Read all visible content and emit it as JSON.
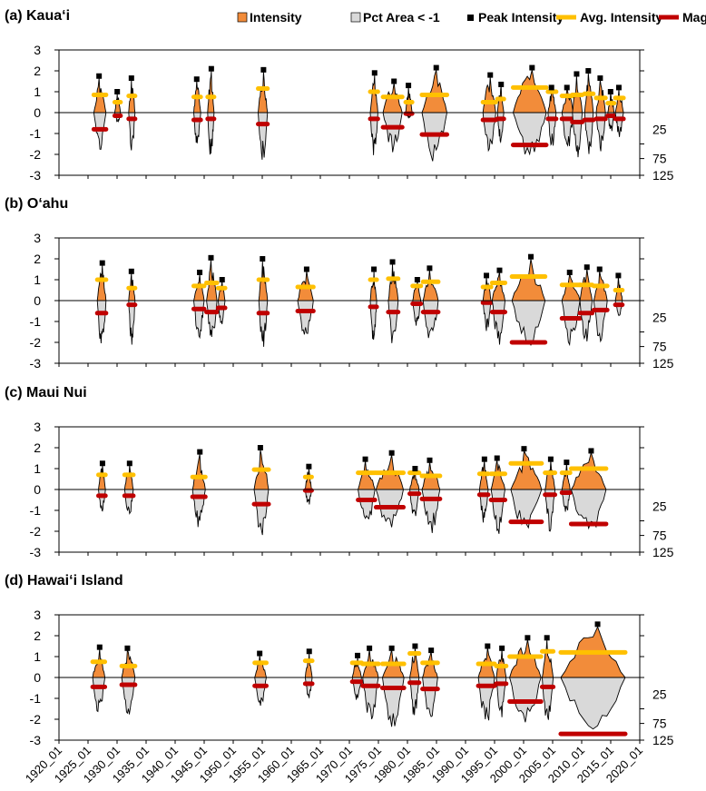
{
  "legend": [
    {
      "label": "Intensity",
      "kind": "swatch",
      "color": "#f28c3a"
    },
    {
      "label": "Pct Area < -1",
      "kind": "swatch",
      "color": "#d9d9d9"
    },
    {
      "label": "Peak Intensity",
      "kind": "square",
      "color": "#000000"
    },
    {
      "label": "Avg. Intensity",
      "kind": "line",
      "color": "#ffc000"
    },
    {
      "label": "Magnitude",
      "kind": "line",
      "color": "#c00000"
    }
  ],
  "colors": {
    "intensity": "#f28c3a",
    "area": "#d9d9d9",
    "peak": "#000000",
    "avg": "#ffc000",
    "magnitude": "#c00000"
  },
  "chart_data": [
    {
      "type": "area",
      "title": "(a) Kaua‘i",
      "ylim": [
        -3,
        3
      ],
      "yticks": [
        3,
        2,
        1,
        0,
        -1,
        -2,
        -3
      ],
      "y2ticks": [
        "25",
        "75",
        "125"
      ],
      "xlim": [
        1920,
        2020
      ],
      "xticks": [
        "1920_01",
        "1925_01",
        "1930_01",
        "1935_01",
        "1940_01",
        "1945_01",
        "1950_01",
        "1955_01",
        "1960_01",
        "1965_01",
        "1970_01",
        "1975_01",
        "1980_01",
        "1985_01",
        "1990_01",
        "1995_01",
        "2000_01",
        "2005_01",
        "2010_01",
        "2015_01",
        "2020_01"
      ],
      "events": [
        {
          "start": 1926.0,
          "end": 1928.1,
          "peak": 1.75,
          "avg": 0.85,
          "mag": -0.8,
          "minArea": -2.0
        },
        {
          "start": 1929.6,
          "end": 1930.6,
          "peak": 1.0,
          "avg": 0.5,
          "mag": -0.15,
          "minArea": -0.5
        },
        {
          "start": 1932.0,
          "end": 1933.1,
          "peak": 1.65,
          "avg": 0.8,
          "mag": -0.3,
          "minArea": -2.0
        },
        {
          "start": 1943.2,
          "end": 1944.4,
          "peak": 1.6,
          "avg": 0.75,
          "mag": -0.35,
          "minArea": -1.7
        },
        {
          "start": 1945.6,
          "end": 1946.7,
          "peak": 2.1,
          "avg": 0.75,
          "mag": -0.3,
          "minArea": -2.3
        },
        {
          "start": 1954.3,
          "end": 1955.9,
          "peak": 2.05,
          "avg": 1.15,
          "mag": -0.55,
          "minArea": -2.4
        },
        {
          "start": 1973.6,
          "end": 1974.9,
          "peak": 1.9,
          "avg": 1.0,
          "mag": -0.3,
          "minArea": -2.2
        },
        {
          "start": 1975.8,
          "end": 1979.1,
          "peak": 1.5,
          "avg": 0.75,
          "mag": -0.7,
          "minArea": -2.0
        },
        {
          "start": 1979.7,
          "end": 1980.8,
          "peak": 1.3,
          "avg": 0.5,
          "mag": -0.05,
          "minArea": -0.3
        },
        {
          "start": 1982.5,
          "end": 1986.8,
          "peak": 2.15,
          "avg": 0.85,
          "mag": -1.05,
          "minArea": -2.4
        },
        {
          "start": 1993.0,
          "end": 1995.2,
          "peak": 1.8,
          "avg": 0.5,
          "mag": -0.35,
          "minArea": -2.3
        },
        {
          "start": 1995.5,
          "end": 1996.6,
          "peak": 1.35,
          "avg": 0.65,
          "mag": -0.3,
          "minArea": -1.5
        },
        {
          "start": 1998.2,
          "end": 2003.9,
          "peak": 2.15,
          "avg": 1.2,
          "mag": -1.55,
          "minArea": -2.4
        },
        {
          "start": 2004.2,
          "end": 2005.6,
          "peak": 1.2,
          "avg": 1.0,
          "mag": -0.3,
          "minArea": -1.8
        },
        {
          "start": 2006.6,
          "end": 2008.6,
          "peak": 1.2,
          "avg": 0.8,
          "mag": -0.3,
          "minArea": -1.8
        },
        {
          "start": 2008.4,
          "end": 2010.1,
          "peak": 1.85,
          "avg": 0.85,
          "mag": -0.45,
          "minArea": -2.3
        },
        {
          "start": 2010.5,
          "end": 2012.0,
          "peak": 2.0,
          "avg": 0.9,
          "mag": -0.35,
          "minArea": -2.3
        },
        {
          "start": 2012.5,
          "end": 2014.1,
          "peak": 1.65,
          "avg": 0.7,
          "mag": -0.3,
          "minArea": -2.0
        },
        {
          "start": 2014.5,
          "end": 2015.6,
          "peak": 1.0,
          "avg": 0.45,
          "mag": -0.15,
          "minArea": -1.0
        },
        {
          "start": 2015.8,
          "end": 2017.2,
          "peak": 1.2,
          "avg": 0.7,
          "mag": -0.3,
          "minArea": -1.2
        }
      ]
    },
    {
      "type": "area",
      "title": "(b) O‘ahu",
      "ylim": [
        -3,
        3
      ],
      "yticks": [
        3,
        2,
        1,
        0,
        -1,
        -2,
        -3
      ],
      "y2ticks": [
        "25",
        "75",
        "125"
      ],
      "xlim": [
        1920,
        2020
      ],
      "xticks": [
        "1920_01",
        "1925_01",
        "1930_01",
        "1935_01",
        "1940_01",
        "1945_01",
        "1950_01",
        "1955_01",
        "1960_01",
        "1965_01",
        "1970_01",
        "1975_01",
        "1980_01",
        "1985_01",
        "1990_01",
        "1995_01",
        "2000_01",
        "2005_01",
        "2010_01",
        "2015_01",
        "2020_01"
      ],
      "events": [
        {
          "start": 1926.6,
          "end": 1928.1,
          "peak": 1.8,
          "avg": 1.0,
          "mag": -0.6,
          "minArea": -2.4
        },
        {
          "start": 1932.0,
          "end": 1933.1,
          "peak": 1.4,
          "avg": 0.6,
          "mag": -0.2,
          "minArea": -2.2
        },
        {
          "start": 1943.2,
          "end": 1945.0,
          "peak": 1.35,
          "avg": 0.7,
          "mag": -0.4,
          "minArea": -1.9
        },
        {
          "start": 1945.4,
          "end": 1947.2,
          "peak": 2.05,
          "avg": 0.85,
          "mag": -0.55,
          "minArea": -2.1
        },
        {
          "start": 1947.4,
          "end": 1948.6,
          "peak": 1.0,
          "avg": 0.6,
          "mag": -0.35,
          "minArea": -1.3
        },
        {
          "start": 1954.4,
          "end": 1955.9,
          "peak": 2.0,
          "avg": 1.0,
          "mag": -0.6,
          "minArea": -2.4
        },
        {
          "start": 1961.1,
          "end": 1963.8,
          "peak": 1.5,
          "avg": 0.65,
          "mag": -0.5,
          "minArea": -2.1
        },
        {
          "start": 1973.6,
          "end": 1974.7,
          "peak": 1.5,
          "avg": 1.0,
          "mag": -0.3,
          "minArea": -2.4
        },
        {
          "start": 1976.7,
          "end": 1978.4,
          "peak": 1.85,
          "avg": 1.05,
          "mag": -0.55,
          "minArea": -2.3
        },
        {
          "start": 1980.9,
          "end": 1982.3,
          "peak": 1.0,
          "avg": 0.7,
          "mag": -0.15,
          "minArea": -1.3
        },
        {
          "start": 1982.7,
          "end": 1985.3,
          "peak": 1.55,
          "avg": 0.9,
          "mag": -0.55,
          "minArea": -2.4
        },
        {
          "start": 1993.0,
          "end": 1994.4,
          "peak": 1.2,
          "avg": 0.65,
          "mag": -0.1,
          "minArea": -1.5
        },
        {
          "start": 1994.6,
          "end": 1996.8,
          "peak": 1.45,
          "avg": 0.85,
          "mag": -0.55,
          "minArea": -2.2
        },
        {
          "start": 1998.0,
          "end": 2003.7,
          "peak": 2.1,
          "avg": 1.15,
          "mag": -2.0,
          "minArea": -2.4
        },
        {
          "start": 2006.6,
          "end": 2009.7,
          "peak": 1.35,
          "avg": 0.75,
          "mag": -0.85,
          "minArea": -2.3
        },
        {
          "start": 2009.7,
          "end": 2011.8,
          "peak": 1.6,
          "avg": 0.75,
          "mag": -0.6,
          "minArea": -2.1
        },
        {
          "start": 2012.1,
          "end": 2014.4,
          "peak": 1.5,
          "avg": 0.7,
          "mag": -0.45,
          "minArea": -2.2
        },
        {
          "start": 2015.8,
          "end": 2017.0,
          "peak": 1.2,
          "avg": 0.5,
          "mag": -0.2,
          "minArea": -0.9
        }
      ]
    },
    {
      "type": "area",
      "title": "(c) Maui Nui",
      "ylim": [
        -3,
        3
      ],
      "yticks": [
        3,
        2,
        1,
        0,
        -1,
        -2,
        -3
      ],
      "y2ticks": [
        "25",
        "75",
        "125"
      ],
      "xlim": [
        1920,
        2020
      ],
      "xticks": [
        "1920_01",
        "1925_01",
        "1930_01",
        "1935_01",
        "1940_01",
        "1945_01",
        "1950_01",
        "1955_01",
        "1960_01",
        "1965_01",
        "1970_01",
        "1975_01",
        "1980_01",
        "1985_01",
        "1990_01",
        "1995_01",
        "2000_01",
        "2005_01",
        "2010_01",
        "2015_01",
        "2020_01"
      ],
      "events": [
        {
          "start": 1926.8,
          "end": 1928.0,
          "peak": 1.25,
          "avg": 0.7,
          "mag": -0.3,
          "minArea": -1.2
        },
        {
          "start": 1931.3,
          "end": 1932.8,
          "peak": 1.25,
          "avg": 0.7,
          "mag": -0.3,
          "minArea": -1.4
        },
        {
          "start": 1943.0,
          "end": 1945.2,
          "peak": 1.8,
          "avg": 0.6,
          "mag": -0.35,
          "minArea": -1.9
        },
        {
          "start": 1953.6,
          "end": 1956.1,
          "peak": 2.0,
          "avg": 0.95,
          "mag": -0.7,
          "minArea": -2.4
        },
        {
          "start": 1962.4,
          "end": 1963.5,
          "peak": 1.1,
          "avg": 0.6,
          "mag": -0.05,
          "minArea": -0.8
        },
        {
          "start": 1971.5,
          "end": 1974.4,
          "peak": 1.45,
          "avg": 0.8,
          "mag": -0.5,
          "minArea": -2.0
        },
        {
          "start": 1974.6,
          "end": 1979.3,
          "peak": 1.75,
          "avg": 0.8,
          "mag": -0.85,
          "minArea": -2.2
        },
        {
          "start": 1980.4,
          "end": 1982.0,
          "peak": 1.0,
          "avg": 0.8,
          "mag": -0.2,
          "minArea": -1.6
        },
        {
          "start": 1982.5,
          "end": 1985.6,
          "peak": 1.4,
          "avg": 0.65,
          "mag": -0.45,
          "minArea": -2.2
        },
        {
          "start": 1992.4,
          "end": 1993.9,
          "peak": 1.45,
          "avg": 0.75,
          "mag": -0.25,
          "minArea": -1.8
        },
        {
          "start": 1994.4,
          "end": 1996.8,
          "peak": 1.5,
          "avg": 0.75,
          "mag": -0.5,
          "minArea": -2.2
        },
        {
          "start": 1997.8,
          "end": 2003.1,
          "peak": 1.95,
          "avg": 1.25,
          "mag": -1.55,
          "minArea": -2.3
        },
        {
          "start": 2003.7,
          "end": 2005.4,
          "peak": 1.45,
          "avg": 0.8,
          "mag": -0.25,
          "minArea": -2.1
        },
        {
          "start": 2006.6,
          "end": 2008.0,
          "peak": 1.3,
          "avg": 0.8,
          "mag": -0.15,
          "minArea": -1.3
        },
        {
          "start": 2008.2,
          "end": 2014.2,
          "peak": 1.85,
          "avg": 1.0,
          "mag": -1.65,
          "minArea": -2.4
        }
      ]
    },
    {
      "type": "area",
      "title": "(d) Hawai‘i Island",
      "ylim": [
        -3,
        3
      ],
      "yticks": [
        3,
        2,
        1,
        0,
        -1,
        -2,
        -3
      ],
      "y2ticks": [
        "25",
        "75",
        "125"
      ],
      "xlim": [
        1920,
        2020
      ],
      "xticks": [
        "1920_01",
        "1925_01",
        "1930_01",
        "1935_01",
        "1940_01",
        "1945_01",
        "1950_01",
        "1955_01",
        "1960_01",
        "1965_01",
        "1970_01",
        "1975_01",
        "1980_01",
        "1985_01",
        "1990_01",
        "1995_01",
        "2000_01",
        "2005_01",
        "2010_01",
        "2015_01",
        "2020_01"
      ],
      "events": [
        {
          "start": 1925.8,
          "end": 1927.9,
          "peak": 1.45,
          "avg": 0.75,
          "mag": -0.45,
          "minArea": -1.9
        },
        {
          "start": 1930.8,
          "end": 1933.1,
          "peak": 1.4,
          "avg": 0.55,
          "mag": -0.35,
          "minArea": -1.9
        },
        {
          "start": 1953.7,
          "end": 1955.7,
          "peak": 1.15,
          "avg": 0.7,
          "mag": -0.4,
          "minArea": -1.5
        },
        {
          "start": 1962.4,
          "end": 1963.6,
          "peak": 1.25,
          "avg": 0.8,
          "mag": -0.3,
          "minArea": -1.2
        },
        {
          "start": 1970.5,
          "end": 1972.1,
          "peak": 1.05,
          "avg": 0.7,
          "mag": -0.2,
          "minArea": -1.3
        },
        {
          "start": 1972.3,
          "end": 1975.0,
          "peak": 1.4,
          "avg": 0.65,
          "mag": -0.4,
          "minArea": -2.3
        },
        {
          "start": 1975.7,
          "end": 1979.4,
          "peak": 1.4,
          "avg": 0.65,
          "mag": -0.5,
          "minArea": -2.6
        },
        {
          "start": 1980.4,
          "end": 1982.0,
          "peak": 1.5,
          "avg": 1.15,
          "mag": -0.25,
          "minArea": -2.0
        },
        {
          "start": 1982.6,
          "end": 1985.2,
          "peak": 1.3,
          "avg": 0.7,
          "mag": -0.55,
          "minArea": -2.3
        },
        {
          "start": 1992.2,
          "end": 1995.0,
          "peak": 1.5,
          "avg": 0.65,
          "mag": -0.4,
          "minArea": -2.4
        },
        {
          "start": 1995.3,
          "end": 1997.0,
          "peak": 1.4,
          "avg": 0.55,
          "mag": -0.3,
          "minArea": -2.0
        },
        {
          "start": 1997.6,
          "end": 2003.0,
          "peak": 1.9,
          "avg": 1.0,
          "mag": -1.15,
          "minArea": -2.6
        },
        {
          "start": 2003.2,
          "end": 2005.1,
          "peak": 1.9,
          "avg": 1.25,
          "mag": -0.45,
          "minArea": -2.4
        },
        {
          "start": 2006.4,
          "end": 2017.5,
          "peak": 2.55,
          "avg": 1.2,
          "mag": -2.7,
          "minArea": -2.85
        }
      ]
    }
  ]
}
